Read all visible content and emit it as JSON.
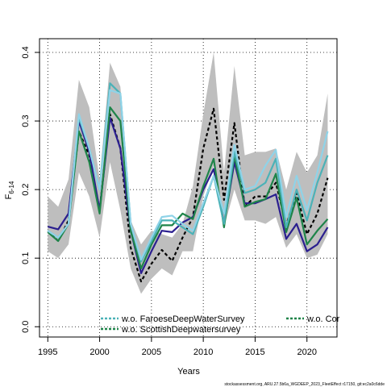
{
  "chart_data": {
    "type": "line",
    "xlabel": "Years",
    "ylabel": "F",
    "ylabel_subscript": "6-14",
    "xlim": [
      1994.2,
      2022.9
    ],
    "ylim": [
      -0.015,
      0.42
    ],
    "x_ticks": [
      "1995",
      "2000",
      "2005",
      "2010",
      "2015",
      "2020"
    ],
    "y_ticks": [
      "0.0",
      "0.1",
      "0.2",
      "0.3",
      "0.4"
    ],
    "grid": true,
    "grid_style": "dotted",
    "legend_placement": "bottom",
    "x": [
      1995,
      1996,
      1997,
      1998,
      1999,
      2000,
      2001,
      2002,
      2003,
      2004,
      2005,
      2006,
      2007,
      2008,
      2009,
      2010,
      2011,
      2012,
      2013,
      2014,
      2015,
      2016,
      2017,
      2018,
      2019,
      2020,
      2021,
      2022
    ],
    "confidence_band": {
      "color": "#bebebe",
      "upper": [
        0.19,
        0.175,
        0.215,
        0.36,
        0.32,
        0.215,
        0.385,
        0.35,
        0.155,
        0.12,
        0.14,
        0.135,
        0.13,
        0.15,
        0.205,
        0.31,
        0.4,
        0.225,
        0.38,
        0.25,
        0.255,
        0.255,
        0.26,
        0.2,
        0.255,
        0.225,
        0.25,
        0.34
      ],
      "lower": [
        0.11,
        0.1,
        0.12,
        0.225,
        0.19,
        0.13,
        0.24,
        0.17,
        0.085,
        0.048,
        0.07,
        0.085,
        0.075,
        0.11,
        0.11,
        0.19,
        0.235,
        0.145,
        0.2,
        0.155,
        0.155,
        0.15,
        0.16,
        0.115,
        0.135,
        0.1,
        0.105,
        0.135
      ]
    },
    "series": [
      {
        "color": "#000000",
        "dash": "4,3",
        "width": 2.2,
        "values": [
          0.14,
          0.125,
          0.155,
          0.285,
          0.25,
          0.17,
          0.31,
          0.26,
          0.115,
          0.066,
          0.092,
          0.112,
          0.096,
          0.13,
          0.16,
          0.26,
          0.318,
          0.185,
          0.297,
          0.175,
          0.19,
          0.19,
          0.21,
          0.148,
          0.195,
          0.135,
          0.165,
          0.217
        ]
      },
      {
        "color": "#2b1f8f",
        "width": 2.2,
        "values": [
          0.146,
          0.142,
          0.165,
          0.3,
          0.255,
          0.17,
          0.305,
          0.26,
          0.14,
          0.078,
          0.11,
          0.14,
          0.138,
          0.152,
          0.16,
          0.2,
          0.23,
          0.15,
          0.24,
          0.18,
          0.18,
          0.186,
          0.193,
          0.128,
          0.15,
          0.11,
          0.12,
          0.145
        ]
      },
      {
        "color": "#1e8449",
        "width": 2.2,
        "values": [
          0.138,
          0.125,
          0.15,
          0.285,
          0.24,
          0.165,
          0.32,
          0.3,
          0.14,
          0.085,
          0.12,
          0.148,
          0.148,
          0.165,
          0.157,
          0.205,
          0.245,
          0.145,
          0.25,
          0.175,
          0.182,
          0.186,
          0.223,
          0.138,
          0.188,
          0.12,
          0.14,
          0.157
        ]
      },
      {
        "color": "#4bb2b7",
        "width": 2.2,
        "values": [
          0.14,
          0.13,
          0.15,
          0.305,
          0.26,
          0.2,
          0.355,
          0.34,
          0.15,
          0.095,
          0.125,
          0.155,
          0.155,
          0.145,
          0.135,
          0.175,
          0.22,
          0.15,
          0.255,
          0.195,
          0.2,
          0.21,
          0.245,
          0.145,
          0.2,
          0.155,
          0.21,
          0.25
        ]
      },
      {
        "color": "#8fd3e8",
        "width": 2.2,
        "values": [
          0.14,
          0.13,
          0.15,
          0.31,
          0.26,
          0.2,
          0.345,
          0.34,
          0.15,
          0.098,
          0.13,
          0.16,
          0.162,
          0.15,
          0.14,
          0.18,
          0.22,
          0.165,
          0.265,
          0.2,
          0.205,
          0.235,
          0.258,
          0.16,
          0.22,
          0.17,
          0.225,
          0.285
        ]
      }
    ],
    "legend": [
      {
        "label": "w.o. FaroeseDeepWaterSurvey",
        "color": "#4bb2b7",
        "dash": "3,2"
      },
      {
        "label": "w.o. ScottishDeepwatersurvey",
        "color": "#1e8449",
        "dash": "3,2"
      },
      {
        "label": "w.o. Cor",
        "color": "#1e8449",
        "dash": "3,2"
      }
    ]
  },
  "footnote": "stockassessment.org, ARU.27.5b6a_WGDEEP_2023_FleetEffect r17150, git:ec2a0c6dde"
}
